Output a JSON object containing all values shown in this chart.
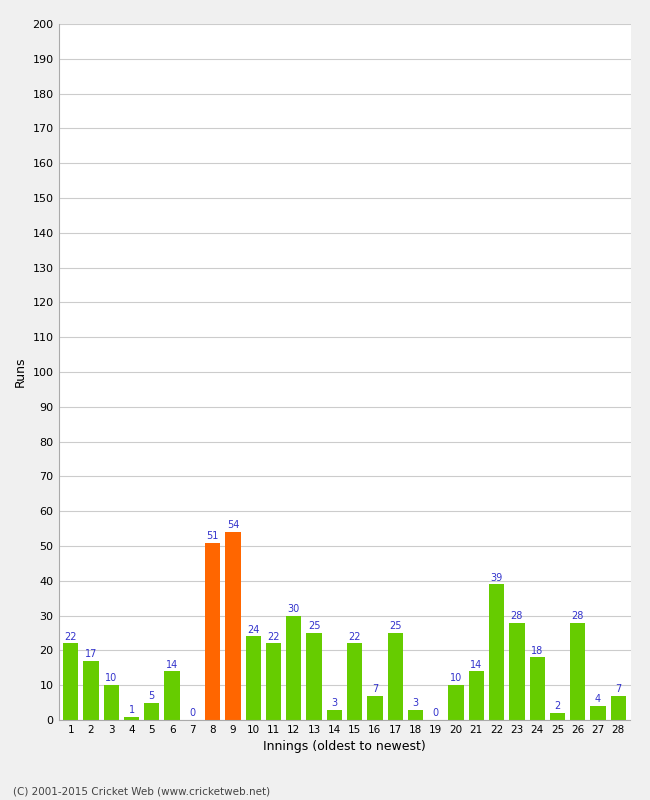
{
  "xlabel": "Innings (oldest to newest)",
  "ylabel": "Runs",
  "categories": [
    1,
    2,
    3,
    4,
    5,
    6,
    7,
    8,
    9,
    10,
    11,
    12,
    13,
    14,
    15,
    16,
    17,
    18,
    19,
    20,
    21,
    22,
    23,
    24,
    25,
    26,
    27,
    28
  ],
  "values": [
    22,
    17,
    10,
    1,
    5,
    14,
    0,
    51,
    54,
    24,
    22,
    30,
    25,
    3,
    22,
    7,
    25,
    3,
    0,
    10,
    14,
    39,
    28,
    18,
    2,
    28,
    4,
    7
  ],
  "bar_colors": [
    "#66cc00",
    "#66cc00",
    "#66cc00",
    "#66cc00",
    "#66cc00",
    "#66cc00",
    "#66cc00",
    "#ff6600",
    "#ff6600",
    "#66cc00",
    "#66cc00",
    "#66cc00",
    "#66cc00",
    "#66cc00",
    "#66cc00",
    "#66cc00",
    "#66cc00",
    "#66cc00",
    "#66cc00",
    "#66cc00",
    "#66cc00",
    "#66cc00",
    "#66cc00",
    "#66cc00",
    "#66cc00",
    "#66cc00",
    "#66cc00",
    "#66cc00"
  ],
  "label_color": "#3333cc",
  "ylim": [
    0,
    200
  ],
  "yticks": [
    0,
    10,
    20,
    30,
    40,
    50,
    60,
    70,
    80,
    90,
    100,
    110,
    120,
    130,
    140,
    150,
    160,
    170,
    180,
    190,
    200
  ],
  "plot_bg_color": "#ffffff",
  "fig_bg_color": "#f0f0f0",
  "grid_color": "#cccccc",
  "footer": "(C) 2001-2015 Cricket Web (www.cricketweb.net)"
}
